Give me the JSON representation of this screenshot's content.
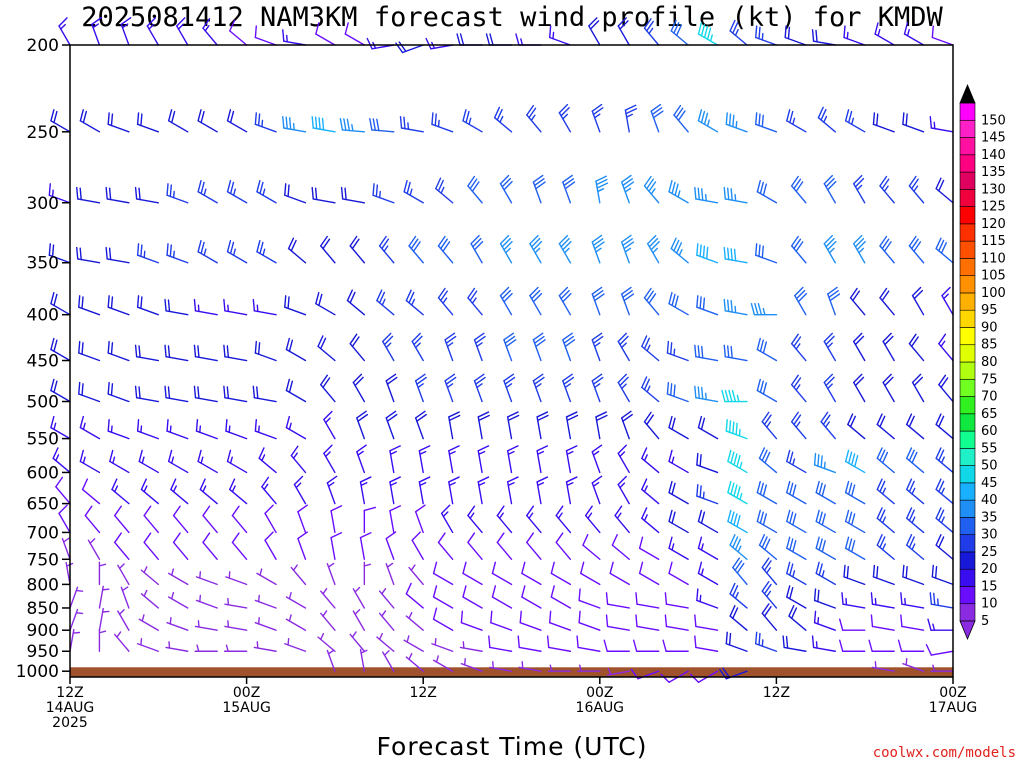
{
  "title": "2025081412 NAM3KM forecast wind profile (kt) for KMDW",
  "credit": "coolwx.com/models",
  "chart_data": {
    "type": "wind-barb-time-height",
    "xlabel": "Forecast Time (UTC)",
    "ylabel": "",
    "pressure_levels_hpa": [
      200,
      250,
      300,
      350,
      400,
      450,
      500,
      550,
      600,
      650,
      700,
      750,
      800,
      850,
      900,
      950,
      1000
    ],
    "y_tick_labels": [
      "200",
      "250",
      "300",
      "350",
      "400",
      "450",
      "500",
      "550",
      "600",
      "650",
      "700",
      "750",
      "800",
      "850",
      "900",
      "950",
      "1000"
    ],
    "ylim_hpa": [
      200,
      1015
    ],
    "x_tick_labels": [
      {
        "hour": 0,
        "lines": [
          "12Z",
          "14AUG",
          "2025"
        ]
      },
      {
        "hour": 12,
        "lines": [
          "00Z",
          "15AUG"
        ]
      },
      {
        "hour": 24,
        "lines": [
          "12Z"
        ]
      },
      {
        "hour": 36,
        "lines": [
          "00Z",
          "16AUG"
        ]
      },
      {
        "hour": 48,
        "lines": [
          "12Z"
        ]
      },
      {
        "hour": 60,
        "lines": [
          "00Z",
          "17AUG"
        ]
      }
    ],
    "xlim_hours": [
      0,
      60
    ],
    "forecast_hours": [
      0,
      2,
      4,
      6,
      8,
      10,
      12,
      14,
      16,
      18,
      20,
      22,
      24,
      26,
      28,
      30,
      32,
      34,
      36,
      38,
      40,
      42,
      44,
      46,
      48,
      50,
      52,
      54,
      56,
      58,
      60
    ],
    "wind_barbs": {
      "units": "kt",
      "note": "direction = degrees wind blows from",
      "200": {
        "dir": [
          330,
          340,
          340,
          330,
          330,
          320,
          310,
          290,
          280,
          300,
          300,
          260,
          250,
          260,
          270,
          270,
          270,
          290,
          330,
          330,
          320,
          310,
          300,
          310,
          290,
          290,
          280,
          290,
          300,
          300,
          290
        ],
        "spd": [
          15,
          15,
          15,
          15,
          15,
          15,
          10,
          10,
          15,
          10,
          10,
          15,
          20,
          15,
          20,
          20,
          15,
          15,
          20,
          20,
          25,
          30,
          45,
          25,
          25,
          20,
          20,
          15,
          15,
          15,
          10
        ]
      },
      "250": {
        "dir": [
          300,
          300,
          290,
          290,
          300,
          300,
          300,
          290,
          280,
          280,
          275,
          275,
          280,
          290,
          300,
          310,
          320,
          330,
          340,
          350,
          340,
          320,
          300,
          290,
          290,
          300,
          310,
          300,
          290,
          290,
          280
        ],
        "spd": [
          20,
          20,
          20,
          20,
          20,
          20,
          20,
          25,
          35,
          40,
          35,
          30,
          25,
          25,
          25,
          25,
          25,
          25,
          25,
          25,
          30,
          30,
          35,
          35,
          30,
          25,
          25,
          25,
          20,
          20,
          15
        ]
      },
      "300": {
        "dir": [
          290,
          280,
          280,
          280,
          290,
          300,
          300,
          300,
          290,
          280,
          280,
          290,
          300,
          310,
          320,
          330,
          340,
          340,
          350,
          340,
          320,
          300,
          280,
          280,
          300,
          320,
          330,
          330,
          320,
          320,
          310
        ],
        "spd": [
          15,
          20,
          20,
          20,
          25,
          25,
          25,
          25,
          20,
          20,
          20,
          25,
          25,
          25,
          30,
          30,
          30,
          30,
          35,
          35,
          35,
          35,
          35,
          35,
          30,
          30,
          30,
          25,
          25,
          25,
          20
        ]
      },
      "350": {
        "dir": [
          290,
          280,
          280,
          290,
          290,
          300,
          300,
          300,
          310,
          320,
          320,
          320,
          320,
          320,
          330,
          330,
          330,
          330,
          340,
          340,
          330,
          310,
          290,
          280,
          290,
          320,
          330,
          330,
          320,
          320,
          310
        ],
        "spd": [
          20,
          20,
          20,
          25,
          25,
          25,
          25,
          25,
          20,
          20,
          20,
          25,
          30,
          30,
          30,
          35,
          35,
          35,
          35,
          35,
          35,
          35,
          40,
          40,
          30,
          30,
          35,
          35,
          30,
          30,
          30
        ]
      },
      "400": {
        "dir": [
          300,
          290,
          290,
          290,
          280,
          280,
          280,
          280,
          290,
          300,
          310,
          310,
          310,
          320,
          320,
          330,
          330,
          330,
          340,
          340,
          320,
          300,
          290,
          280,
          270,
          330,
          340,
          320,
          320,
          330,
          330
        ],
        "spd": [
          20,
          20,
          20,
          20,
          20,
          15,
          15,
          15,
          20,
          20,
          20,
          25,
          25,
          25,
          25,
          30,
          30,
          30,
          30,
          30,
          30,
          30,
          30,
          35,
          35,
          30,
          30,
          20,
          20,
          20,
          15
        ]
      },
      "450": {
        "dir": [
          300,
          290,
          290,
          280,
          280,
          280,
          280,
          290,
          300,
          310,
          320,
          330,
          330,
          340,
          340,
          340,
          340,
          340,
          340,
          330,
          310,
          290,
          280,
          280,
          300,
          320,
          330,
          330,
          330,
          320,
          320
        ],
        "spd": [
          20,
          20,
          20,
          20,
          20,
          20,
          20,
          20,
          20,
          20,
          20,
          25,
          25,
          25,
          25,
          30,
          30,
          30,
          25,
          25,
          25,
          25,
          30,
          30,
          30,
          25,
          25,
          20,
          20,
          20,
          15
        ]
      },
      "500": {
        "dir": [
          300,
          290,
          290,
          280,
          280,
          280,
          280,
          280,
          300,
          320,
          330,
          340,
          340,
          340,
          340,
          340,
          340,
          340,
          340,
          330,
          310,
          290,
          280,
          270,
          300,
          320,
          330,
          330,
          330,
          330,
          320
        ],
        "spd": [
          20,
          20,
          20,
          20,
          20,
          20,
          20,
          20,
          20,
          20,
          20,
          20,
          25,
          25,
          25,
          25,
          25,
          25,
          25,
          25,
          25,
          30,
          35,
          45,
          30,
          25,
          25,
          20,
          20,
          20,
          20
        ]
      },
      "550": {
        "dir": [
          300,
          300,
          290,
          290,
          290,
          290,
          290,
          290,
          300,
          330,
          340,
          340,
          340,
          350,
          350,
          350,
          350,
          350,
          350,
          340,
          320,
          300,
          300,
          290,
          320,
          320,
          320,
          310,
          310,
          310,
          310
        ],
        "spd": [
          15,
          15,
          15,
          15,
          15,
          15,
          15,
          15,
          15,
          15,
          20,
          20,
          20,
          20,
          20,
          20,
          20,
          20,
          20,
          20,
          20,
          20,
          20,
          45,
          25,
          25,
          25,
          20,
          20,
          20,
          20
        ]
      },
      "600": {
        "dir": [
          310,
          300,
          300,
          300,
          300,
          300,
          300,
          310,
          320,
          330,
          340,
          350,
          350,
          350,
          350,
          350,
          350,
          350,
          340,
          330,
          310,
          300,
          290,
          300,
          310,
          300,
          290,
          300,
          310,
          310,
          310
        ],
        "spd": [
          15,
          15,
          15,
          15,
          15,
          15,
          15,
          15,
          15,
          15,
          15,
          15,
          15,
          15,
          15,
          15,
          15,
          15,
          15,
          15,
          15,
          15,
          20,
          45,
          30,
          25,
          35,
          40,
          30,
          30,
          25
        ]
      },
      "650": {
        "dir": [
          320,
          310,
          310,
          310,
          310,
          310,
          310,
          320,
          330,
          340,
          350,
          350,
          350,
          350,
          350,
          350,
          350,
          350,
          340,
          330,
          310,
          300,
          290,
          300,
          300,
          300,
          300,
          300,
          310,
          310,
          310
        ],
        "spd": [
          10,
          10,
          15,
          15,
          15,
          15,
          15,
          15,
          15,
          15,
          15,
          15,
          15,
          15,
          15,
          15,
          15,
          15,
          15,
          15,
          15,
          20,
          25,
          45,
          30,
          30,
          30,
          30,
          25,
          25,
          25
        ]
      },
      "700": {
        "dir": [
          330,
          320,
          320,
          320,
          320,
          320,
          320,
          330,
          340,
          350,
          0,
          350,
          340,
          330,
          320,
          320,
          320,
          320,
          320,
          320,
          310,
          300,
          300,
          300,
          300,
          300,
          300,
          300,
          310,
          310,
          310
        ],
        "spd": [
          10,
          10,
          10,
          10,
          10,
          10,
          10,
          10,
          10,
          10,
          10,
          10,
          10,
          15,
          15,
          15,
          15,
          15,
          15,
          15,
          15,
          20,
          20,
          40,
          30,
          30,
          30,
          30,
          25,
          25,
          25
        ]
      },
      "750": {
        "dir": [
          340,
          330,
          320,
          320,
          320,
          320,
          320,
          330,
          340,
          350,
          350,
          340,
          330,
          320,
          320,
          320,
          320,
          320,
          310,
          310,
          300,
          300,
          300,
          310,
          310,
          300,
          300,
          300,
          310,
          310,
          310
        ],
        "spd": [
          5,
          5,
          10,
          10,
          10,
          10,
          10,
          10,
          10,
          10,
          10,
          10,
          10,
          10,
          10,
          10,
          10,
          10,
          10,
          10,
          10,
          15,
          15,
          35,
          30,
          30,
          30,
          30,
          25,
          25,
          20
        ]
      },
      "800": {
        "dir": [
          350,
          0,
          330,
          310,
          300,
          290,
          290,
          300,
          320,
          340,
          0,
          340,
          320,
          300,
          300,
          300,
          300,
          300,
          300,
          300,
          300,
          300,
          300,
          320,
          320,
          300,
          300,
          290,
          290,
          290,
          290
        ],
        "spd": [
          5,
          5,
          5,
          5,
          5,
          5,
          5,
          5,
          5,
          5,
          5,
          5,
          5,
          10,
          10,
          10,
          10,
          10,
          10,
          10,
          10,
          10,
          15,
          30,
          25,
          25,
          25,
          20,
          20,
          20,
          20
        ]
      },
      "850": {
        "dir": [
          20,
          10,
          340,
          310,
          300,
          290,
          280,
          290,
          300,
          320,
          330,
          320,
          310,
          300,
          300,
          300,
          300,
          300,
          290,
          280,
          280,
          280,
          290,
          310,
          320,
          300,
          290,
          280,
          280,
          280,
          280
        ],
        "spd": [
          5,
          5,
          5,
          5,
          5,
          5,
          5,
          5,
          5,
          5,
          5,
          5,
          10,
          10,
          10,
          10,
          10,
          10,
          10,
          10,
          10,
          10,
          15,
          25,
          25,
          20,
          20,
          15,
          15,
          15,
          25
        ]
      },
      "900": {
        "dir": [
          20,
          10,
          330,
          300,
          290,
          280,
          280,
          290,
          300,
          320,
          330,
          320,
          310,
          300,
          290,
          290,
          290,
          290,
          290,
          280,
          280,
          280,
          280,
          310,
          320,
          310,
          290,
          270,
          280,
          280,
          270
        ],
        "spd": [
          5,
          5,
          5,
          5,
          5,
          5,
          5,
          5,
          5,
          5,
          5,
          5,
          5,
          10,
          10,
          10,
          10,
          10,
          10,
          10,
          10,
          10,
          10,
          20,
          20,
          20,
          15,
          10,
          10,
          10,
          15
        ]
      },
      "950": {
        "dir": [
          10,
          0,
          320,
          290,
          280,
          270,
          270,
          280,
          290,
          310,
          320,
          310,
          300,
          290,
          280,
          280,
          280,
          280,
          280,
          270,
          270,
          270,
          280,
          290,
          290,
          280,
          280,
          270,
          270,
          270,
          260
        ],
        "spd": [
          5,
          5,
          5,
          5,
          5,
          5,
          5,
          5,
          5,
          5,
          5,
          5,
          5,
          5,
          5,
          10,
          10,
          10,
          10,
          10,
          10,
          10,
          10,
          20,
          25,
          20,
          15,
          10,
          10,
          10,
          10
        ]
      },
      "1000": {
        "dir": [
          null,
          null,
          null,
          null,
          null,
          null,
          null,
          null,
          null,
          340,
          350,
          330,
          310,
          300,
          290,
          280,
          280,
          270,
          270,
          260,
          250,
          240,
          240,
          250,
          null,
          null,
          null,
          null,
          280,
          290,
          270
        ],
        "spd": [
          null,
          null,
          null,
          null,
          null,
          null,
          null,
          null,
          null,
          5,
          5,
          5,
          5,
          5,
          5,
          5,
          5,
          5,
          5,
          5,
          10,
          10,
          10,
          20,
          null,
          null,
          null,
          null,
          5,
          5,
          5
        ]
      }
    },
    "colorbar": {
      "labels": [
        "5",
        "10",
        "15",
        "20",
        "25",
        "30",
        "35",
        "40",
        "45",
        "50",
        "55",
        "60",
        "65",
        "70",
        "75",
        "80",
        "85",
        "90",
        "95",
        "100",
        "105",
        "110",
        "115",
        "120",
        "125",
        "130",
        "135",
        "140",
        "145",
        "150"
      ],
      "colors": [
        "#8a2be2",
        "#6a0dff",
        "#3a0cf0",
        "#1818d8",
        "#1f3ce8",
        "#2060f0",
        "#1f8ff5",
        "#18b0ff",
        "#10d8e8",
        "#20f0c8",
        "#10ff90",
        "#10e840",
        "#30f020",
        "#70ff20",
        "#b0ff10",
        "#e0ff00",
        "#ffff00",
        "#ffd700",
        "#ffb000",
        "#ff9000",
        "#ff7000",
        "#ff5000",
        "#ff3000",
        "#ff0000",
        "#f0003c",
        "#e00060",
        "#ff0080",
        "#ff10a0",
        "#ff20c8",
        "#ff00ff"
      ]
    },
    "ground_color": "#a0522d",
    "ground_from_hpa": 990
  }
}
